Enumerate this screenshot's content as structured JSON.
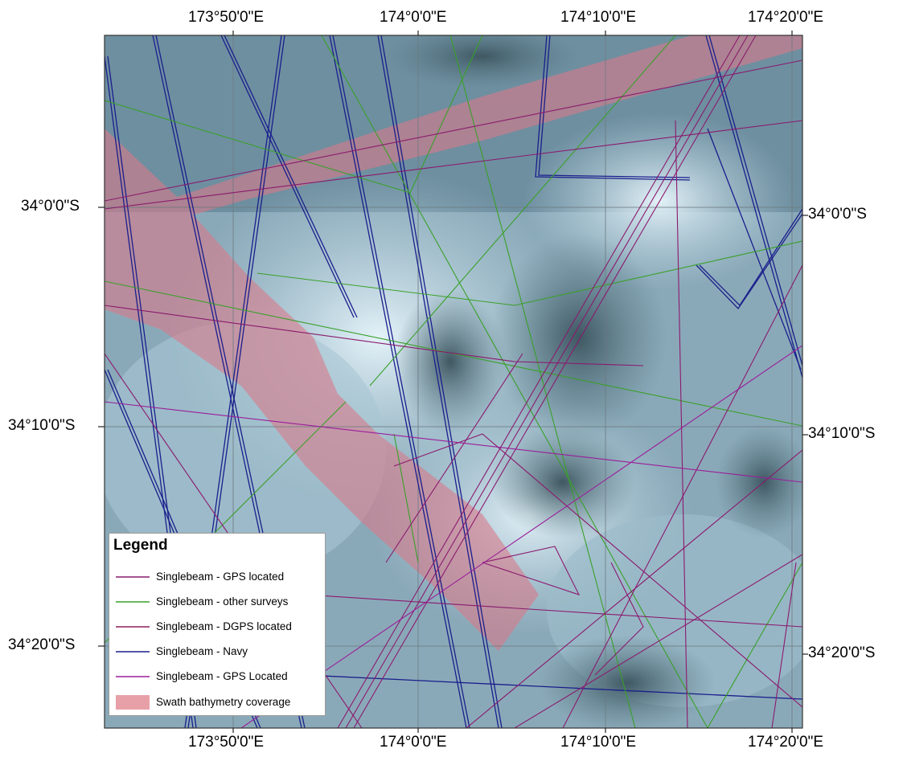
{
  "map": {
    "frame_ticks": {
      "top": [
        "173°50'0\"E",
        "174°0'0\"E",
        "174°10'0\"E",
        "174°20'0\"E"
      ],
      "bottom": [
        "173°50'0\"E",
        "174°0'0\"E",
        "174°10'0\"E",
        "174°20'0\"E"
      ],
      "left": [
        "34°0'0\"S",
        "34°10'0\"S",
        "34°20'0\"S"
      ],
      "right": [
        "34°0'0\"S",
        "34°10'0\"S",
        "34°20'0\"S"
      ]
    }
  },
  "legend": {
    "title": "Legend",
    "items": [
      {
        "label": "Singlebeam - GPS located",
        "type": "line",
        "color": "#8a1a6e"
      },
      {
        "label": "Singlebeam - other surveys",
        "type": "line",
        "color": "#3aa02a"
      },
      {
        "label": "Singlebeam - DGPS located",
        "type": "line",
        "color": "#8e1f5a"
      },
      {
        "label": "Singlebeam - Navy",
        "type": "line",
        "color": "#1a1e8c"
      },
      {
        "label": "Singlebeam - GPS Located",
        "type": "line",
        "color": "#9a1e9a"
      },
      {
        "label": "Swath bathymetry coverage",
        "type": "fill",
        "color": "#e8a0a8"
      }
    ]
  }
}
